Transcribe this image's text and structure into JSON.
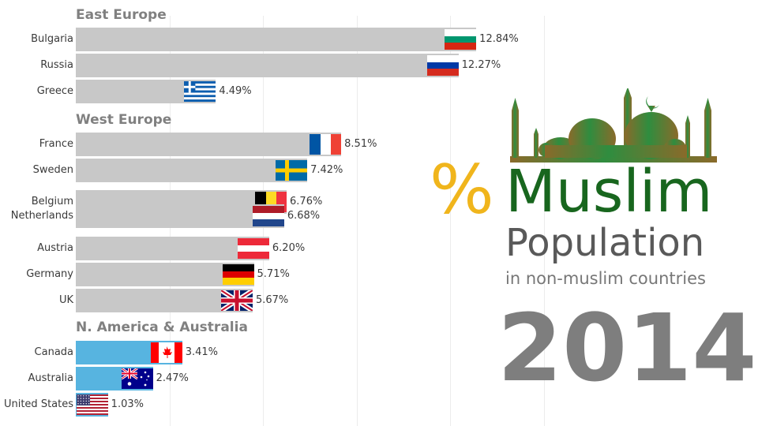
{
  "chart_data": {
    "type": "bar",
    "orientation": "horizontal",
    "value_format": "percent",
    "grid": true,
    "groups": [
      {
        "name": "East Europe",
        "color": "#c8c8c8",
        "items": [
          {
            "category": "Bulgaria",
            "value": 12.84,
            "label": "12.84%",
            "flag": "bulgaria-flag"
          },
          {
            "category": "Russia",
            "value": 12.27,
            "label": "12.27%",
            "flag": "russia-flag"
          },
          {
            "category": "Greece",
            "value": 4.49,
            "label": "4.49%",
            "flag": "greece-flag"
          }
        ]
      },
      {
        "name": "West Europe",
        "color": "#c8c8c8",
        "items": [
          {
            "category": "France",
            "value": 8.51,
            "label": "8.51%",
            "flag": "france-flag"
          },
          {
            "category": "Sweden",
            "value": 7.42,
            "label": "7.42%",
            "flag": "sweden-flag"
          },
          {
            "category": "Belgium",
            "value": 6.76,
            "label": "6.76%",
            "flag": "belgium-flag"
          },
          {
            "category": "Netherlands",
            "value": 6.68,
            "label": "6.68%",
            "flag": "netherlands-flag"
          },
          {
            "category": "Austria",
            "value": 6.2,
            "label": "6.20%",
            "flag": "austria-flag"
          },
          {
            "category": "Germany",
            "value": 5.71,
            "label": "5.71%",
            "flag": "germany-flag"
          },
          {
            "category": "UK",
            "value": 5.67,
            "label": "5.67%",
            "flag": "uk-flag"
          }
        ]
      },
      {
        "name": "N. America & Australia",
        "color": "#57b4e0",
        "items": [
          {
            "category": "Canada",
            "value": 3.41,
            "label": "3.41%",
            "flag": "canada-flag"
          },
          {
            "category": "Australia",
            "value": 2.47,
            "label": "2.47%",
            "flag": "australia-flag"
          },
          {
            "category": "United States",
            "value": 1.03,
            "label": "1.03%",
            "flag": "usa-flag"
          }
        ]
      }
    ]
  },
  "logo": {
    "percent_sign": "%",
    "title": "Muslim",
    "subtitle": "Population",
    "caption": "in non-muslim countries",
    "icon": "mosque-icon",
    "colors": {
      "accent": "#f0b51c",
      "title": "#18661e",
      "subtitle": "#595959",
      "mosque": "#2e8b3e"
    }
  },
  "year": "2014"
}
